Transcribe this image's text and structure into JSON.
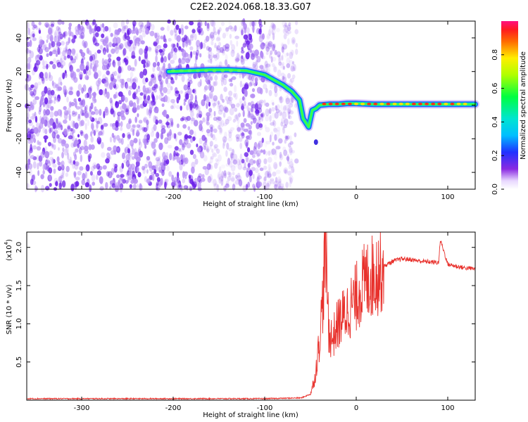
{
  "title": "C2E2.2024.068.18.33.G07",
  "colors": {
    "snr_line": "#e8302b",
    "spectrogram_noise": "#7a2cf0",
    "background": "#ffffff",
    "axes": "#000000"
  },
  "chart_data": [
    {
      "type": "heatmap",
      "xlabel": "Height of straight line (km)",
      "ylabel": "Frequency (Hz)",
      "xlim": [
        -360,
        130
      ],
      "ylim": [
        -50,
        50
      ],
      "xticks": [
        -300,
        -200,
        -100,
        0,
        100
      ],
      "yticks": [
        -40,
        -20,
        0,
        20,
        40
      ],
      "grid": false,
      "colorbar": {
        "label": "Normalized spectral amplitude",
        "range": [
          0.0,
          1.0
        ],
        "ticks": [
          "0.0",
          "0.2",
          "0.4",
          "0.6",
          "0.8"
        ],
        "colormap": "rainbow"
      },
      "noise_region_x": [
        -360,
        -75
      ],
      "signal_track": {
        "x": [
          -205,
          -180,
          -160,
          -140,
          -120,
          -100,
          -90,
          -80,
          -70,
          -62,
          -58,
          -52,
          -48,
          -44,
          -40,
          -30,
          -20,
          -10,
          0,
          20,
          40,
          60,
          80,
          100,
          120,
          130
        ],
        "y": [
          20,
          20.5,
          21,
          21,
          20.5,
          18,
          15,
          12,
          8,
          3,
          -8,
          -13,
          -3,
          -2,
          0,
          0.5,
          0.5,
          1,
          1,
          0.5,
          0.5,
          0.5,
          0.5,
          0.5,
          0.5,
          0.5
        ]
      }
    },
    {
      "type": "line",
      "xlabel": "Height of straight line (km)",
      "ylabel": "SNR (10 * v/v)",
      "yscale_label": "(x10",
      "yscale_exp": "4",
      "xlim": [
        -360,
        130
      ],
      "ylim": [
        0,
        2.2
      ],
      "xticks": [
        -300,
        -200,
        -100,
        0,
        100
      ],
      "yticks": [
        "0.5",
        "1.0",
        "1.5",
        "2.0"
      ],
      "grid": false,
      "series": [
        {
          "x": [
            -360,
            -300,
            -200,
            -100,
            -60,
            -50,
            -45,
            -40,
            -36,
            -34,
            -32,
            -30,
            -26,
            -20,
            -14,
            -8,
            -2,
            4,
            10,
            20,
            30,
            40,
            50,
            60,
            70,
            80,
            90,
            92,
            100,
            110,
            120,
            130
          ],
          "values": [
            0.02,
            0.02,
            0.02,
            0.02,
            0.03,
            0.08,
            0.3,
            0.8,
            1.4,
            2.1,
            1.6,
            0.9,
            0.8,
            1.0,
            1.1,
            1.2,
            1.3,
            1.45,
            1.55,
            1.65,
            1.75,
            1.82,
            1.85,
            1.84,
            1.82,
            1.81,
            1.8,
            2.1,
            1.78,
            1.75,
            1.73,
            1.72
          ]
        }
      ]
    }
  ]
}
